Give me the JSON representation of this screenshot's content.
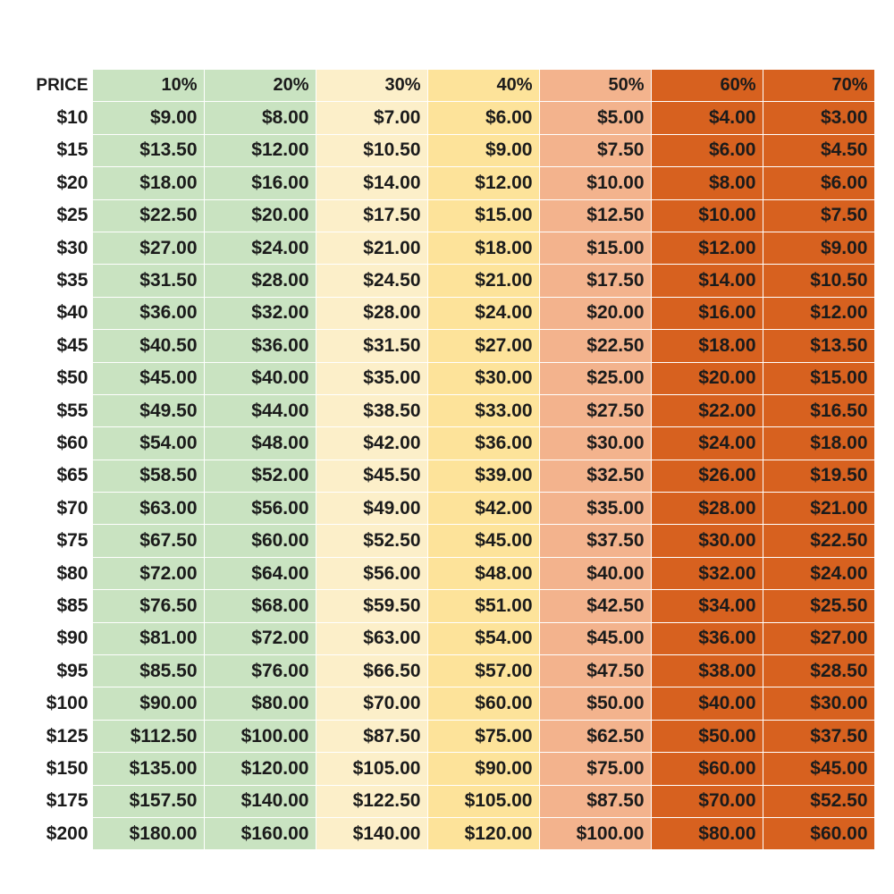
{
  "table": {
    "price_header": "PRICE",
    "columns": [
      {
        "label": "10%",
        "color": "#c9e3c1"
      },
      {
        "label": "20%",
        "color": "#c9e3c1"
      },
      {
        "label": "30%",
        "color": "#fcefc9"
      },
      {
        "label": "40%",
        "color": "#fde39a"
      },
      {
        "label": "50%",
        "color": "#f3b38d"
      },
      {
        "label": "60%",
        "color": "#d7611f"
      },
      {
        "label": "70%",
        "color": "#d7611f"
      }
    ],
    "rows": [
      {
        "price": "$10",
        "values": [
          "$9.00",
          "$8.00",
          "$7.00",
          "$6.00",
          "$5.00",
          "$4.00",
          "$3.00"
        ]
      },
      {
        "price": "$15",
        "values": [
          "$13.50",
          "$12.00",
          "$10.50",
          "$9.00",
          "$7.50",
          "$6.00",
          "$4.50"
        ]
      },
      {
        "price": "$20",
        "values": [
          "$18.00",
          "$16.00",
          "$14.00",
          "$12.00",
          "$10.00",
          "$8.00",
          "$6.00"
        ]
      },
      {
        "price": "$25",
        "values": [
          "$22.50",
          "$20.00",
          "$17.50",
          "$15.00",
          "$12.50",
          "$10.00",
          "$7.50"
        ]
      },
      {
        "price": "$30",
        "values": [
          "$27.00",
          "$24.00",
          "$21.00",
          "$18.00",
          "$15.00",
          "$12.00",
          "$9.00"
        ]
      },
      {
        "price": "$35",
        "values": [
          "$31.50",
          "$28.00",
          "$24.50",
          "$21.00",
          "$17.50",
          "$14.00",
          "$10.50"
        ]
      },
      {
        "price": "$40",
        "values": [
          "$36.00",
          "$32.00",
          "$28.00",
          "$24.00",
          "$20.00",
          "$16.00",
          "$12.00"
        ]
      },
      {
        "price": "$45",
        "values": [
          "$40.50",
          "$36.00",
          "$31.50",
          "$27.00",
          "$22.50",
          "$18.00",
          "$13.50"
        ]
      },
      {
        "price": "$50",
        "values": [
          "$45.00",
          "$40.00",
          "$35.00",
          "$30.00",
          "$25.00",
          "$20.00",
          "$15.00"
        ]
      },
      {
        "price": "$55",
        "values": [
          "$49.50",
          "$44.00",
          "$38.50",
          "$33.00",
          "$27.50",
          "$22.00",
          "$16.50"
        ]
      },
      {
        "price": "$60",
        "values": [
          "$54.00",
          "$48.00",
          "$42.00",
          "$36.00",
          "$30.00",
          "$24.00",
          "$18.00"
        ]
      },
      {
        "price": "$65",
        "values": [
          "$58.50",
          "$52.00",
          "$45.50",
          "$39.00",
          "$32.50",
          "$26.00",
          "$19.50"
        ]
      },
      {
        "price": "$70",
        "values": [
          "$63.00",
          "$56.00",
          "$49.00",
          "$42.00",
          "$35.00",
          "$28.00",
          "$21.00"
        ]
      },
      {
        "price": "$75",
        "values": [
          "$67.50",
          "$60.00",
          "$52.50",
          "$45.00",
          "$37.50",
          "$30.00",
          "$22.50"
        ]
      },
      {
        "price": "$80",
        "values": [
          "$72.00",
          "$64.00",
          "$56.00",
          "$48.00",
          "$40.00",
          "$32.00",
          "$24.00"
        ]
      },
      {
        "price": "$85",
        "values": [
          "$76.50",
          "$68.00",
          "$59.50",
          "$51.00",
          "$42.50",
          "$34.00",
          "$25.50"
        ]
      },
      {
        "price": "$90",
        "values": [
          "$81.00",
          "$72.00",
          "$63.00",
          "$54.00",
          "$45.00",
          "$36.00",
          "$27.00"
        ]
      },
      {
        "price": "$95",
        "values": [
          "$85.50",
          "$76.00",
          "$66.50",
          "$57.00",
          "$47.50",
          "$38.00",
          "$28.50"
        ]
      },
      {
        "price": "$100",
        "values": [
          "$90.00",
          "$80.00",
          "$70.00",
          "$60.00",
          "$50.00",
          "$40.00",
          "$30.00"
        ]
      },
      {
        "price": "$125",
        "values": [
          "$112.50",
          "$100.00",
          "$87.50",
          "$75.00",
          "$62.50",
          "$50.00",
          "$37.50"
        ]
      },
      {
        "price": "$150",
        "values": [
          "$135.00",
          "$120.00",
          "$105.00",
          "$90.00",
          "$75.00",
          "$60.00",
          "$45.00"
        ]
      },
      {
        "price": "$175",
        "values": [
          "$157.50",
          "$140.00",
          "$122.50",
          "$105.00",
          "$87.50",
          "$70.00",
          "$52.50"
        ]
      },
      {
        "price": "$200",
        "values": [
          "$180.00",
          "$160.00",
          "$140.00",
          "$120.00",
          "$100.00",
          "$80.00",
          "$60.00"
        ]
      }
    ]
  }
}
